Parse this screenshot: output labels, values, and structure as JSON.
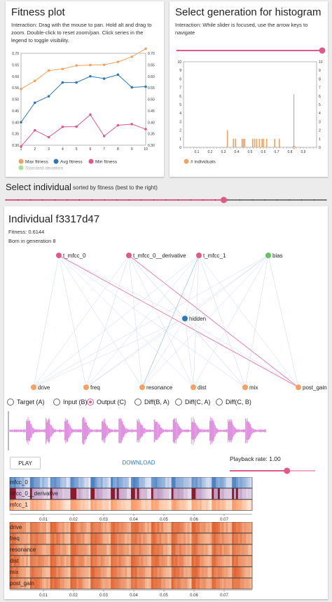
{
  "fitness_panel": {
    "title": "Fitness plot",
    "description": "Interaction: Drag with the mouse to pan. Hold alt and drag to zoom. Double-click to reset zoom/pan. Click series in the legend to toggle visibility.",
    "legend": [
      {
        "label": "Max fitness",
        "color": "#f4a261"
      },
      {
        "label": "Avg fitness",
        "color": "#2f78b4"
      },
      {
        "label": "Min fitness",
        "color": "#e05a87"
      },
      {
        "label": "Standard deviation",
        "color": "#a8e09a"
      }
    ]
  },
  "histogram_panel": {
    "title": "Select generation for histogram",
    "description": "Interaction: While slider is focused, use the arrow keys to navigate",
    "legend_label": "# individuals",
    "legend_color": "#f4a261",
    "slider_value": 1.0
  },
  "select_individual": {
    "label": "Select individual",
    "hint": "sorted by fitness (best to the right)",
    "slider_value": 0.68
  },
  "individual": {
    "title": "Individual f3317d47",
    "fitness_line": "Fitness: 0.6144",
    "born_line": "Born in generation 8",
    "nodes": {
      "inputs": [
        "t_mfcc_0",
        "t_mfcc_0__derivative",
        "t_mfcc_1",
        "bias"
      ],
      "hidden": "hidden",
      "outputs": [
        "drive",
        "freq",
        "resonance",
        "dist",
        "mix",
        "post_gain"
      ]
    },
    "radios": [
      {
        "label": "Target (A)",
        "selected": false
      },
      {
        "label": "Input (B)",
        "selected": false
      },
      {
        "label": "Output (C)",
        "selected": true
      },
      {
        "label": "Diff(B, A)",
        "selected": false
      },
      {
        "label": "Diff(C, A)",
        "selected": false
      },
      {
        "label": "Diff(C, B)",
        "selected": false
      }
    ],
    "play_label": "PLAY",
    "download_label": "DOWNLOAD",
    "playback_label": "Playback rate: 1.00",
    "playback_value": 0.67,
    "heatmap_top_labels": [
      "mfcc_0",
      "mfcc_0__derivative",
      "mfcc_1"
    ],
    "heatmap_bottom_labels": [
      "drive",
      "freq",
      "resonance",
      "dist",
      "mix",
      "post_gain"
    ],
    "time_ticks": [
      "0.01",
      "0.02",
      "0.03",
      "0.04",
      "0.05",
      "0.06",
      "0.07"
    ]
  },
  "chart_data": [
    {
      "type": "line",
      "x": [
        1,
        2,
        3,
        4,
        5,
        6,
        7,
        8,
        9,
        10
      ],
      "xlim": [
        1,
        10
      ],
      "ylim": [
        0.3,
        0.7
      ],
      "yticks": [
        0.3,
        0.35,
        0.4,
        0.45,
        0.5,
        0.55,
        0.6,
        0.65,
        0.7
      ],
      "series": [
        {
          "name": "Max fitness",
          "color": "#f4a261",
          "values": [
            0.545,
            0.58,
            0.625,
            0.632,
            0.647,
            0.649,
            0.65,
            0.663,
            0.685,
            0.72
          ]
        },
        {
          "name": "Avg fitness",
          "color": "#2f78b4",
          "values": [
            0.4,
            0.485,
            0.513,
            0.573,
            0.573,
            0.6,
            0.59,
            0.607,
            0.552,
            0.555
          ]
        },
        {
          "name": "Min fitness",
          "color": "#e05a87",
          "values": [
            0.295,
            0.365,
            0.335,
            0.38,
            0.381,
            0.433,
            0.34,
            0.387,
            0.392,
            0.37
          ]
        }
      ]
    },
    {
      "type": "bar",
      "xlim": [
        0,
        1
      ],
      "ylim": [
        0,
        10
      ],
      "yticks": [
        0,
        1,
        2,
        3,
        4,
        5,
        6,
        7,
        8,
        9,
        10
      ],
      "xticks": [
        0.1,
        0.2,
        0.3,
        0.4,
        0.5,
        0.6,
        0.7,
        0.8,
        0.9
      ],
      "series": [
        {
          "name": "# individuals",
          "values": [
            [
              0.33,
              2
            ],
            [
              0.375,
              1
            ],
            [
              0.39,
              1
            ],
            [
              0.44,
              1
            ],
            [
              0.45,
              1
            ],
            [
              0.46,
              1
            ],
            [
              0.52,
              1
            ],
            [
              0.535,
              1
            ],
            [
              0.55,
              1
            ],
            [
              0.57,
              1
            ],
            [
              0.59,
              1
            ],
            [
              0.6,
              1
            ],
            [
              0.625,
              1
            ],
            [
              0.685,
              1
            ],
            [
              0.72,
              1
            ]
          ]
        }
      ],
      "annotation_line_x": 0.83,
      "annotation_line_y": 6.2
    }
  ]
}
